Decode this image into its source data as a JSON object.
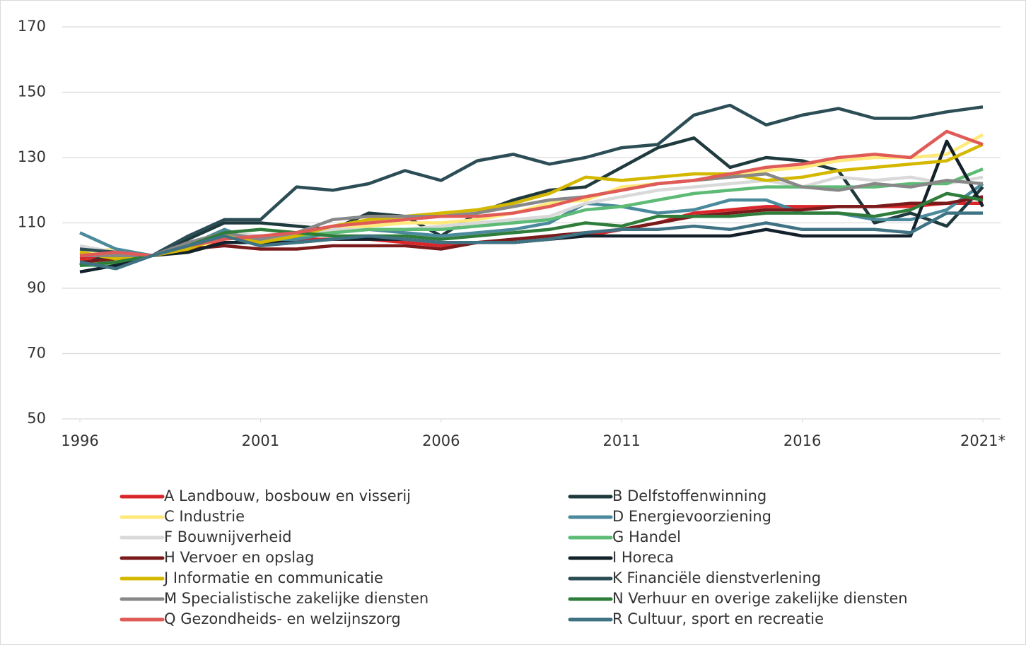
{
  "chart_data": {
    "type": "line",
    "x": [
      1996,
      1997,
      1998,
      1999,
      2000,
      2001,
      2002,
      2003,
      2004,
      2005,
      2006,
      2007,
      2008,
      2009,
      2010,
      2011,
      2012,
      2013,
      2014,
      2015,
      2016,
      2017,
      2018,
      2019,
      2020,
      2021
    ],
    "xlim": [
      1996,
      2021
    ],
    "xticks": [
      1996,
      2001,
      2006,
      2011,
      2016,
      {
        "value": 2021,
        "label": "2021*"
      }
    ],
    "ylim": [
      50,
      170
    ],
    "yticks": [
      50,
      70,
      90,
      110,
      130,
      150,
      170
    ],
    "grid": true,
    "legend": "bottom",
    "series": [
      {
        "name": "A Landbouw, bosbouw en visserij",
        "color": "#d9262b",
        "values": [
          99,
          100,
          100,
          102,
          104,
          104,
          105,
          105,
          105,
          104,
          103,
          104,
          104,
          105,
          106,
          108,
          110,
          113,
          114,
          115,
          115,
          115,
          115,
          115,
          116,
          116
        ]
      },
      {
        "name": "B Delfstoffenwinning",
        "color": "#1f3a3d",
        "values": [
          97,
          101,
          100,
          105,
          110,
          110,
          109,
          108,
          113,
          112,
          106,
          113,
          117,
          120,
          121,
          127,
          133,
          136,
          127,
          130,
          129,
          126,
          110,
          113,
          109,
          121
        ]
      },
      {
        "name": "C Industrie",
        "color": "#ffe97a",
        "values": [
          101,
          102,
          100,
          101,
          106,
          103,
          106,
          108,
          109,
          110,
          110,
          111,
          113,
          116,
          117,
          121,
          122,
          123,
          124,
          126,
          127,
          129,
          130,
          130,
          131,
          137
        ]
      },
      {
        "name": "D Energievoorziening",
        "color": "#4a8a9c",
        "values": [
          107,
          102,
          100,
          103,
          108,
          104,
          105,
          107,
          108,
          107,
          106,
          107,
          108,
          110,
          116,
          115,
          113,
          114,
          117,
          117,
          113,
          113,
          111,
          111,
          114,
          122
        ]
      },
      {
        "name": "F Bouwnijverheid",
        "color": "#d9d9d9",
        "values": [
          103,
          101,
          100,
          103,
          107,
          106,
          107,
          108,
          108,
          108,
          109,
          110,
          111,
          112,
          116,
          118,
          120,
          121,
          122,
          123,
          121,
          124,
          123,
          124,
          122,
          124
        ]
      },
      {
        "name": "G Handel",
        "color": "#5dbb76",
        "values": [
          97,
          97,
          100,
          102,
          106,
          104,
          106,
          107,
          108,
          108,
          108,
          109,
          110,
          111,
          114,
          115,
          117,
          119,
          120,
          121,
          121,
          121,
          121,
          122,
          122,
          126.5
        ]
      },
      {
        "name": "H Vervoer en opslag",
        "color": "#7b1a1a",
        "values": [
          98,
          99,
          100,
          102,
          103,
          102,
          102,
          103,
          103,
          103,
          102,
          104,
          105,
          106,
          107,
          108,
          110,
          112,
          113,
          114,
          114,
          115,
          115,
          116,
          116,
          118
        ]
      },
      {
        "name": "I Horeca",
        "color": "#13212b",
        "values": [
          95,
          97,
          100,
          101,
          104,
          104,
          104,
          105,
          105,
          105,
          104,
          104,
          104,
          105,
          106,
          106,
          106,
          106,
          106,
          108,
          106,
          106,
          106,
          106,
          135,
          115
        ]
      },
      {
        "name": "J Informatie en communicatie",
        "color": "#d4b800",
        "values": [
          101,
          99,
          100,
          102,
          106,
          104,
          106,
          109,
          111,
          112,
          113,
          114,
          116,
          119,
          124,
          123,
          124,
          125,
          125,
          123,
          124,
          126,
          127,
          128,
          129,
          134
        ]
      },
      {
        "name": "K Financiële dienstverlening",
        "color": "#2c4d55",
        "values": [
          102,
          101,
          100,
          106,
          111,
          111,
          121,
          120,
          122,
          126,
          123,
          129,
          131,
          128,
          130,
          133,
          134,
          143,
          146,
          140,
          143,
          145,
          142,
          142,
          144,
          145.5
        ]
      },
      {
        "name": "M Specialistische zakelijke diensten",
        "color": "#888888",
        "values": [
          100,
          100,
          100,
          104,
          107,
          105,
          107,
          111,
          112,
          112,
          112,
          113,
          115,
          117,
          118,
          120,
          122,
          123,
          124,
          125,
          121,
          120,
          122,
          121,
          123,
          122
        ]
      },
      {
        "name": "N Verhuur en overige zakelijke diensten",
        "color": "#2e7d3a",
        "values": [
          97,
          98,
          100,
          103,
          107,
          108,
          107,
          106,
          106,
          106,
          105,
          106,
          107,
          108,
          110,
          109,
          112,
          112,
          112,
          113,
          113,
          113,
          112,
          114,
          119,
          117
        ]
      },
      {
        "name": "Q Gezondheids- en welzijnszorg",
        "color": "#e05b57",
        "values": [
          100,
          101,
          100,
          103,
          105,
          106,
          107,
          109,
          110,
          111,
          112,
          112,
          113,
          115,
          118,
          120,
          122,
          123,
          125,
          127,
          128,
          130,
          131,
          130,
          138,
          134
        ]
      },
      {
        "name": "R Cultuur, sport en recreatie",
        "color": "#3f7384",
        "values": [
          98,
          96,
          100,
          103,
          106,
          103,
          104,
          105,
          106,
          105,
          104,
          104,
          104,
          105,
          107,
          108,
          108,
          109,
          108,
          110,
          108,
          108,
          108,
          107,
          113,
          113
        ]
      }
    ]
  }
}
